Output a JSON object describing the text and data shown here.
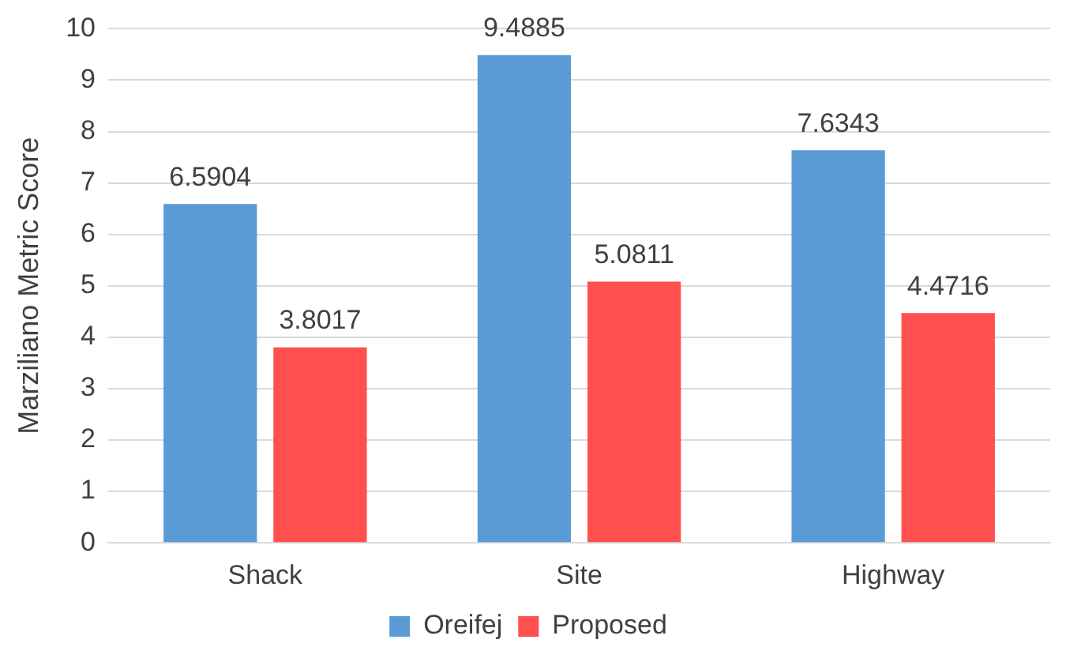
{
  "chart_data": {
    "type": "bar",
    "ylabel": "Marziliano Metric Score",
    "categories": [
      "Shack",
      "Site",
      "Highway"
    ],
    "series": [
      {
        "name": "Oreifej",
        "color": "#5b9bd5",
        "values": [
          6.5904,
          9.4885,
          7.6343
        ]
      },
      {
        "name": "Proposed",
        "color": "#ff4f4f",
        "values": [
          3.8017,
          5.0811,
          4.4716
        ]
      }
    ],
    "ylim": [
      0,
      10
    ],
    "yticks": [
      0,
      1,
      2,
      3,
      4,
      5,
      6,
      7,
      8,
      9,
      10
    ],
    "grid": "y",
    "legend": "bottom",
    "data_labels": true
  }
}
